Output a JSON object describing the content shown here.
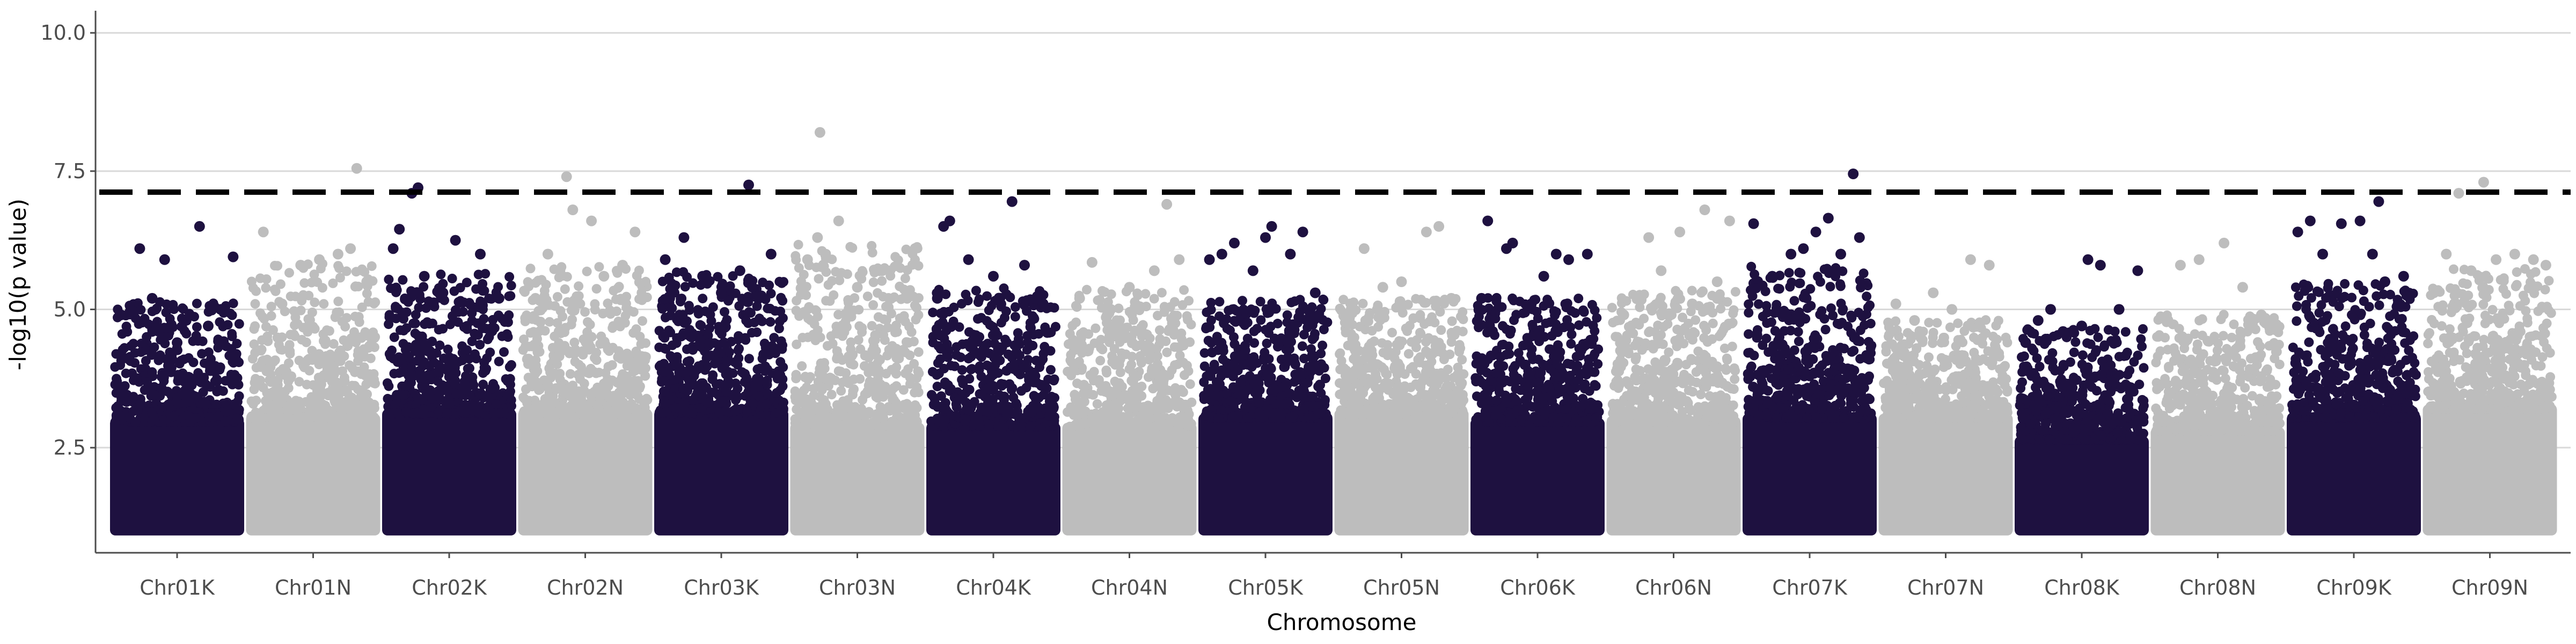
{
  "chart_data": {
    "type": "scatter",
    "subtype": "manhattan",
    "title": "",
    "xlabel": "Chromosome",
    "ylabel": "-log10(p value)",
    "ylim": [
      0.6,
      10.4
    ],
    "yticks": [
      "2.5",
      "5.0",
      "7.5",
      "10.0"
    ],
    "grid": "horizontal major",
    "legend": "none",
    "threshold": 7.12,
    "colors": {
      "dark": "#1e1140",
      "light": "#bdbdbd",
      "threshold": "#000000",
      "grid": "#d9d9d9",
      "axis": "#4d4d4d"
    },
    "categories": [
      "Chr01K",
      "Chr01N",
      "Chr02K",
      "Chr02N",
      "Chr03K",
      "Chr03N",
      "Chr04K",
      "Chr04N",
      "Chr05K",
      "Chr05N",
      "Chr06K",
      "Chr06N",
      "Chr07K",
      "Chr07N",
      "Chr08K",
      "Chr08N",
      "Chr09K",
      "Chr09N"
    ],
    "series": [
      {
        "category": "Chr01K",
        "color": "dark",
        "base": 3.7,
        "max": 6.5,
        "top_points": [
          [
            0.05,
            4.9
          ],
          [
            0.12,
            4.95
          ],
          [
            0.2,
            6.1
          ],
          [
            0.3,
            5.2
          ],
          [
            0.4,
            5.9
          ],
          [
            0.5,
            4.4
          ],
          [
            0.68,
            6.5
          ],
          [
            0.75,
            4.7
          ],
          [
            0.85,
            5.0
          ],
          [
            0.95,
            5.95
          ]
        ]
      },
      {
        "category": "Chr01N",
        "color": "light",
        "base": 3.8,
        "max": 7.55,
        "top_points": [
          [
            0.1,
            6.4
          ],
          [
            0.25,
            5.1
          ],
          [
            0.4,
            5.8
          ],
          [
            0.55,
            5.9
          ],
          [
            0.7,
            6.0
          ],
          [
            0.8,
            6.1
          ],
          [
            0.85,
            7.55
          ],
          [
            0.93,
            5.5
          ]
        ]
      },
      {
        "category": "Chr02K",
        "color": "dark",
        "base": 3.9,
        "max": 7.2,
        "top_points": [
          [
            0.05,
            6.1
          ],
          [
            0.1,
            6.45
          ],
          [
            0.2,
            7.1
          ],
          [
            0.25,
            7.2
          ],
          [
            0.3,
            5.6
          ],
          [
            0.45,
            5.3
          ],
          [
            0.55,
            6.25
          ],
          [
            0.75,
            6.0
          ],
          [
            0.9,
            5.2
          ]
        ]
      },
      {
        "category": "Chr02N",
        "color": "light",
        "base": 3.9,
        "max": 7.4,
        "top_points": [
          [
            0.1,
            5.2
          ],
          [
            0.2,
            6.0
          ],
          [
            0.35,
            7.4
          ],
          [
            0.4,
            6.8
          ],
          [
            0.55,
            6.6
          ],
          [
            0.65,
            5.6
          ],
          [
            0.8,
            5.8
          ],
          [
            0.9,
            6.4
          ]
        ]
      },
      {
        "category": "Chr03K",
        "color": "dark",
        "base": 3.9,
        "max": 7.25,
        "top_points": [
          [
            0.05,
            5.9
          ],
          [
            0.2,
            6.3
          ],
          [
            0.35,
            5.6
          ],
          [
            0.5,
            5.3
          ],
          [
            0.65,
            5.7
          ],
          [
            0.72,
            7.25
          ],
          [
            0.75,
            5.4
          ],
          [
            0.9,
            6.0
          ]
        ]
      },
      {
        "category": "Chr03N",
        "color": "light",
        "base": 3.6,
        "max": 8.2,
        "top_points": [
          [
            0.1,
            5.9
          ],
          [
            0.18,
            6.3
          ],
          [
            0.2,
            8.2
          ],
          [
            0.35,
            6.6
          ],
          [
            0.5,
            5.4
          ],
          [
            0.7,
            5.7
          ],
          [
            0.9,
            5.2
          ]
        ]
      },
      {
        "category": "Chr04K",
        "color": "dark",
        "base": 3.6,
        "max": 6.95,
        "top_points": [
          [
            0.05,
            5.2
          ],
          [
            0.1,
            6.5
          ],
          [
            0.15,
            6.6
          ],
          [
            0.3,
            5.9
          ],
          [
            0.5,
            5.6
          ],
          [
            0.65,
            6.95
          ],
          [
            0.75,
            5.8
          ],
          [
            0.9,
            5.1
          ]
        ]
      },
      {
        "category": "Chr04N",
        "color": "light",
        "base": 3.6,
        "max": 6.9,
        "top_points": [
          [
            0.1,
            5.2
          ],
          [
            0.2,
            5.85
          ],
          [
            0.35,
            5.0
          ],
          [
            0.5,
            5.4
          ],
          [
            0.7,
            5.7
          ],
          [
            0.8,
            6.9
          ],
          [
            0.9,
            5.9
          ]
        ]
      },
      {
        "category": "Chr05K",
        "color": "dark",
        "base": 3.8,
        "max": 6.5,
        "top_points": [
          [
            0.05,
            5.9
          ],
          [
            0.15,
            6.0
          ],
          [
            0.25,
            6.2
          ],
          [
            0.4,
            5.7
          ],
          [
            0.5,
            6.3
          ],
          [
            0.55,
            6.5
          ],
          [
            0.7,
            6.0
          ],
          [
            0.8,
            6.4
          ],
          [
            0.9,
            5.3
          ]
        ]
      },
      {
        "category": "Chr05N",
        "color": "light",
        "base": 3.9,
        "max": 6.5,
        "top_points": [
          [
            0.1,
            5.1
          ],
          [
            0.2,
            6.1
          ],
          [
            0.35,
            5.4
          ],
          [
            0.5,
            5.5
          ],
          [
            0.7,
            6.4
          ],
          [
            0.8,
            6.5
          ],
          [
            0.9,
            5.2
          ]
        ]
      },
      {
        "category": "Chr06K",
        "color": "dark",
        "base": 3.7,
        "max": 6.6,
        "top_points": [
          [
            0.05,
            5.2
          ],
          [
            0.1,
            6.6
          ],
          [
            0.25,
            6.1
          ],
          [
            0.3,
            6.2
          ],
          [
            0.45,
            5.1
          ],
          [
            0.55,
            5.6
          ],
          [
            0.65,
            6.0
          ],
          [
            0.75,
            5.9
          ],
          [
            0.9,
            6.0
          ]
        ]
      },
      {
        "category": "Chr06N",
        "color": "light",
        "base": 3.7,
        "max": 6.8,
        "top_points": [
          [
            0.1,
            4.9
          ],
          [
            0.3,
            6.3
          ],
          [
            0.4,
            5.7
          ],
          [
            0.55,
            6.4
          ],
          [
            0.65,
            5.1
          ],
          [
            0.75,
            6.8
          ],
          [
            0.85,
            5.5
          ],
          [
            0.95,
            6.6
          ]
        ]
      },
      {
        "category": "Chr07K",
        "color": "dark",
        "base": 3.8,
        "max": 7.45,
        "top_points": [
          [
            0.05,
            6.55
          ],
          [
            0.2,
            5.6
          ],
          [
            0.35,
            6.0
          ],
          [
            0.45,
            6.1
          ],
          [
            0.55,
            6.4
          ],
          [
            0.65,
            6.65
          ],
          [
            0.75,
            6.0
          ],
          [
            0.85,
            7.45
          ],
          [
            0.9,
            6.3
          ]
        ]
      },
      {
        "category": "Chr07N",
        "color": "light",
        "base": 3.8,
        "max": 5.9,
        "top_points": [
          [
            0.1,
            5.1
          ],
          [
            0.25,
            4.8
          ],
          [
            0.4,
            5.3
          ],
          [
            0.55,
            5.0
          ],
          [
            0.7,
            5.9
          ],
          [
            0.85,
            5.8
          ]
        ]
      },
      {
        "category": "Chr08K",
        "color": "dark",
        "base": 3.3,
        "max": 5.9,
        "top_points": [
          [
            0.05,
            4.4
          ],
          [
            0.15,
            4.8
          ],
          [
            0.25,
            5.0
          ],
          [
            0.35,
            4.6
          ],
          [
            0.5,
            4.7
          ],
          [
            0.55,
            5.9
          ],
          [
            0.65,
            5.8
          ],
          [
            0.8,
            5.0
          ],
          [
            0.95,
            5.7
          ]
        ]
      },
      {
        "category": "Chr08N",
        "color": "light",
        "base": 3.5,
        "max": 6.2,
        "top_points": [
          [
            0.1,
            4.8
          ],
          [
            0.2,
            5.8
          ],
          [
            0.35,
            5.9
          ],
          [
            0.55,
            6.2
          ],
          [
            0.7,
            5.4
          ],
          [
            0.85,
            4.9
          ]
        ]
      },
      {
        "category": "Chr09K",
        "color": "dark",
        "base": 3.8,
        "max": 6.95,
        "top_points": [
          [
            0.05,
            6.4
          ],
          [
            0.15,
            6.6
          ],
          [
            0.25,
            6.0
          ],
          [
            0.4,
            6.55
          ],
          [
            0.55,
            6.6
          ],
          [
            0.65,
            6.0
          ],
          [
            0.7,
            6.95
          ],
          [
            0.75,
            5.5
          ],
          [
            0.9,
            5.6
          ]
        ]
      },
      {
        "category": "Chr09N",
        "color": "light",
        "base": 4.0,
        "max": 7.3,
        "top_points": [
          [
            0.05,
            5.3
          ],
          [
            0.15,
            6.0
          ],
          [
            0.25,
            7.1
          ],
          [
            0.35,
            5.7
          ],
          [
            0.45,
            7.3
          ],
          [
            0.55,
            5.9
          ],
          [
            0.7,
            6.0
          ],
          [
            0.85,
            5.9
          ],
          [
            0.95,
            5.8
          ]
        ]
      }
    ]
  }
}
